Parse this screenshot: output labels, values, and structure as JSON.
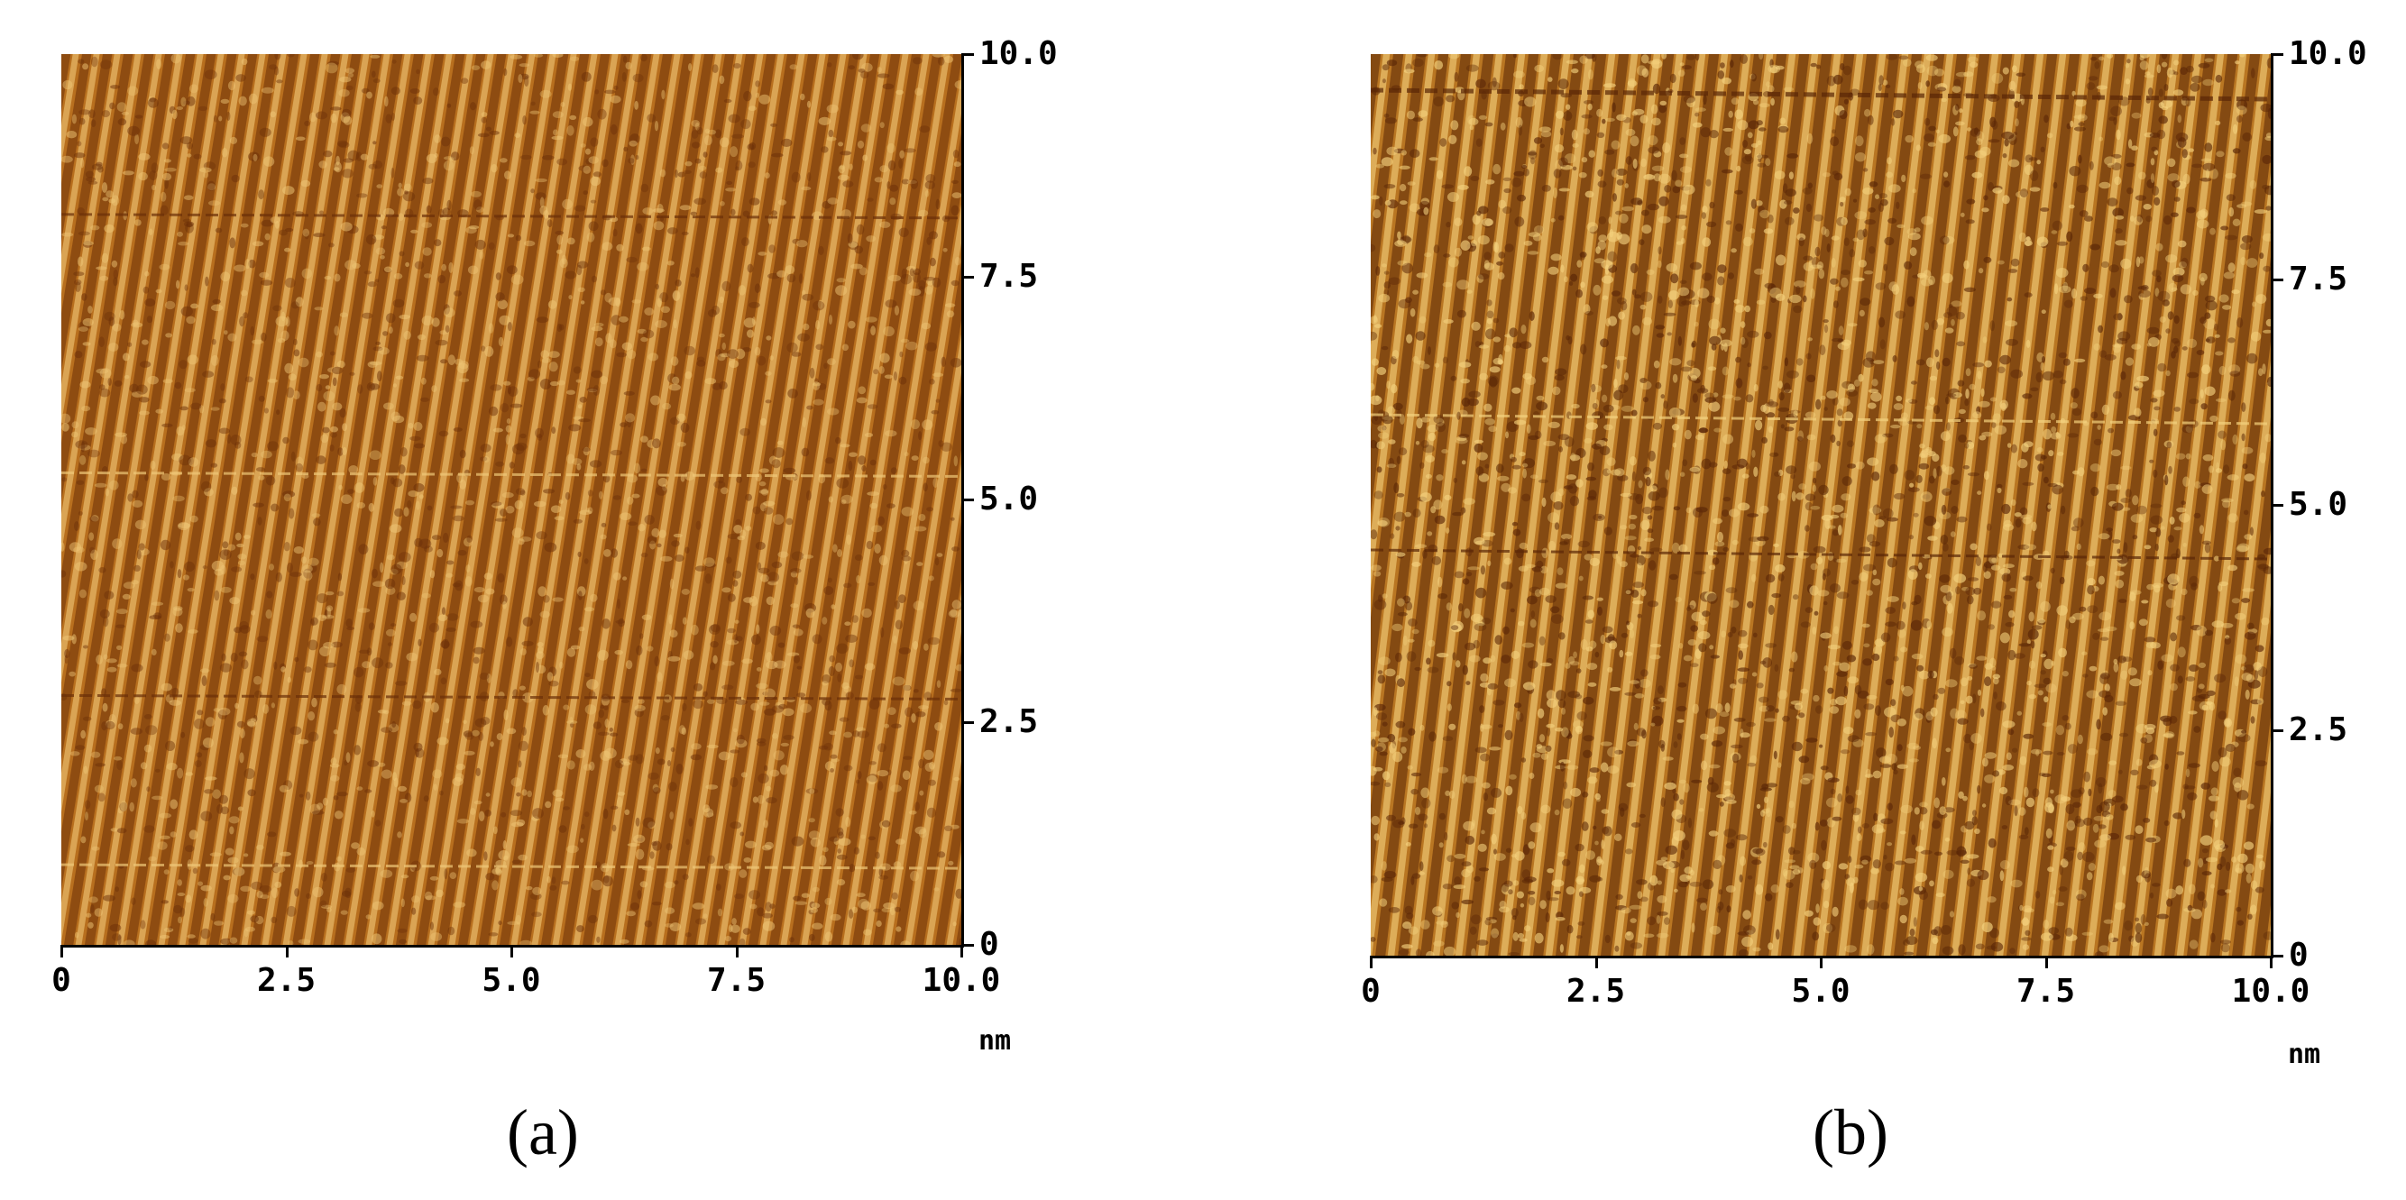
{
  "panels": [
    {
      "label": "(a)",
      "x_ticks": [
        "0",
        "2.5",
        "5.0",
        "7.5",
        "10.0"
      ],
      "y_ticks": [
        "0",
        "2.5",
        "5.0",
        "7.5",
        "10.0"
      ],
      "unit": "nm",
      "scan_range": [
        0,
        10.0
      ],
      "colors": {
        "dark": "#6b2f08",
        "mid": "#b86f1e",
        "light": "#f0c878"
      }
    },
    {
      "label": "(b)",
      "x_ticks": [
        "0",
        "2.5",
        "5.0",
        "7.5",
        "10.0"
      ],
      "y_ticks": [
        "0",
        "2.5",
        "5.0",
        "7.5",
        "10.0"
      ],
      "unit": "nm",
      "scan_range": [
        0,
        10.0
      ],
      "colors": {
        "dark": "#5a2606",
        "mid": "#b97622",
        "light": "#f5d27e"
      }
    }
  ]
}
